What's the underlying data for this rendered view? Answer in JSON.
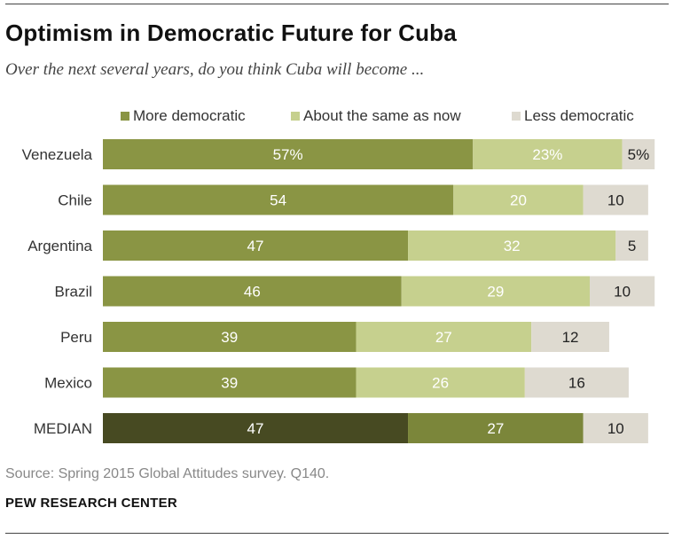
{
  "title": "Optimism in Democratic Future for Cuba",
  "subtitle": "Over the next several years, do you think Cuba will become ...",
  "legend": [
    {
      "label": "More democratic",
      "color": "#8a9544"
    },
    {
      "label": "About the same as now",
      "color": "#c6d08e"
    },
    {
      "label": "Less democratic",
      "color": "#dedad0"
    }
  ],
  "source": "Source: Spring 2015 Global Attitudes survey. Q140.",
  "organization": "PEW RESEARCH CENTER",
  "chart_data": {
    "type": "bar",
    "orientation": "horizontal",
    "stacked": true,
    "categories": [
      "Venezuela",
      "Chile",
      "Argentina",
      "Brazil",
      "Peru",
      "Mexico",
      "MEDIAN"
    ],
    "series": [
      {
        "name": "More democratic",
        "values": [
          57,
          54,
          47,
          46,
          39,
          39,
          47
        ],
        "color": "#8a9544"
      },
      {
        "name": "About the same as now",
        "values": [
          23,
          20,
          32,
          29,
          27,
          26,
          27
        ],
        "color": "#c6d08e"
      },
      {
        "name": "Less democratic",
        "values": [
          5,
          10,
          5,
          10,
          12,
          16,
          10
        ],
        "color": "#dedad0"
      }
    ],
    "labels": [
      [
        "57%",
        "23%",
        "5%"
      ],
      [
        "54",
        "20",
        "10"
      ],
      [
        "47",
        "32",
        "5"
      ],
      [
        "46",
        "29",
        "10"
      ],
      [
        "39",
        "27",
        "12"
      ],
      [
        "39",
        "26",
        "16"
      ],
      [
        "47",
        "27",
        "10"
      ]
    ],
    "median_colors": [
      "#474a22",
      "#7b863a",
      "#dedad0"
    ],
    "xlim": [
      0,
      100
    ]
  }
}
